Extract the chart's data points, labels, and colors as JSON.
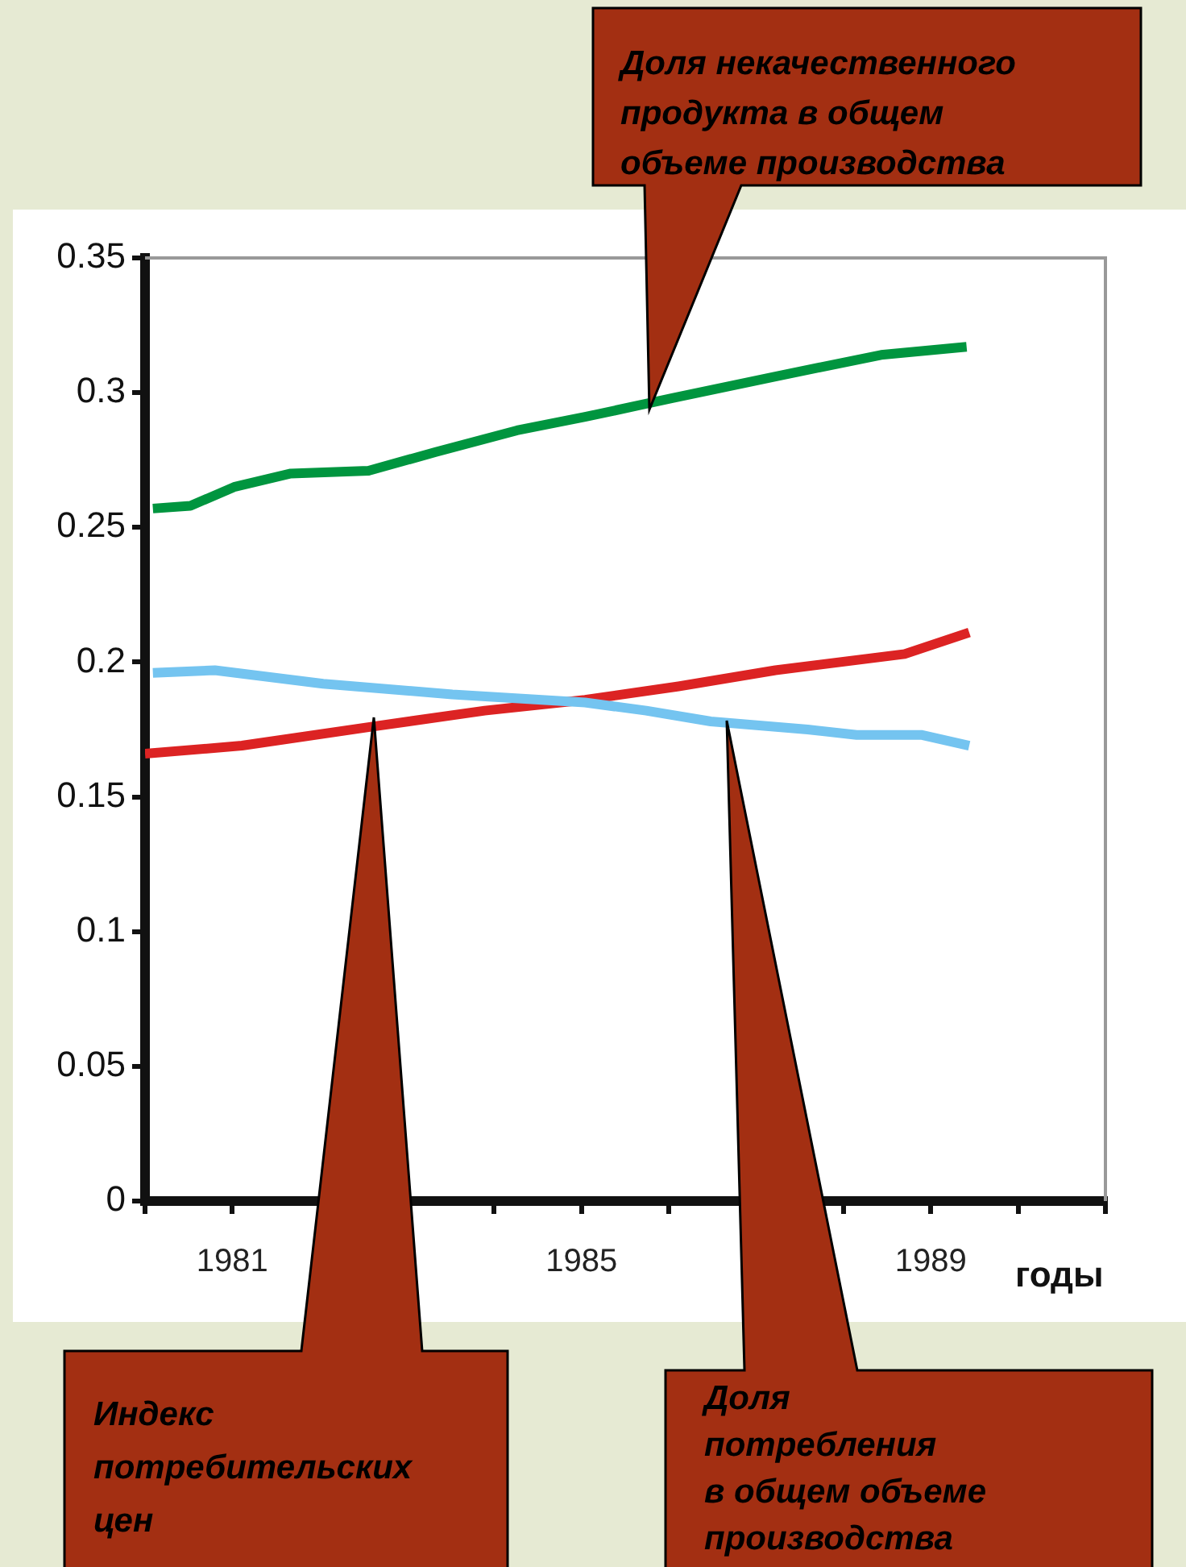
{
  "chart_data": {
    "type": "line",
    "xlabel": "годы",
    "xlim": [
      1980,
      1991
    ],
    "xticks": [
      {
        "value": 1980,
        "label": null
      },
      1981,
      {
        "value": 1982,
        "label": null
      },
      {
        "value": 1983,
        "label": null
      },
      {
        "value": 1984,
        "label": null
      },
      1985,
      {
        "value": 1986,
        "label": null
      },
      {
        "value": 1987,
        "label": null
      },
      {
        "value": 1988,
        "label": null
      },
      1989,
      {
        "value": 1990,
        "label": null
      },
      {
        "value": 1991,
        "label": null
      }
    ],
    "ylim": [
      0,
      0.35
    ],
    "yticks": [
      0,
      0.05,
      0.1,
      0.15,
      0.2,
      0.25,
      0.3,
      0.35
    ],
    "grid": false,
    "legend": false,
    "marker": "none",
    "line_style": "solid",
    "series": [
      {
        "color": "#00953f",
        "x": [
          1980.09,
          1980.52,
          1981.02,
          1981.67,
          1982.56,
          1983.33,
          1984.26,
          1985.04,
          1986.04,
          1987.22,
          1988.43,
          1989.41
        ],
        "values": [
          0.257,
          0.258,
          0.265,
          0.27,
          0.271,
          0.278,
          0.286,
          0.291,
          0.298,
          0.306,
          0.314,
          0.317
        ]
      },
      {
        "color": "#74c4f0",
        "x": [
          1980.09,
          1980.8,
          1982.04,
          1983.52,
          1985.04,
          1985.74,
          1986.48,
          1987.59,
          1988.15,
          1988.89,
          1989.44
        ],
        "values": [
          0.196,
          0.197,
          0.192,
          0.188,
          0.185,
          0.182,
          0.178,
          0.175,
          0.173,
          0.173,
          0.169
        ]
      },
      {
        "color": "#dc2323",
        "x": [
          1980,
          1981.11,
          1982.59,
          1983.89,
          1985.04,
          1986.11,
          1987.22,
          1988.7,
          1989.44
        ],
        "values": [
          0.166,
          0.169,
          0.176,
          0.182,
          0.186,
          0.191,
          0.197,
          0.203,
          0.211
        ]
      }
    ],
    "annotations": [
      "Доля некачественного\nпродукта в общем\nобъеме производства",
      "Индекс\nпотребительских\nцен",
      "Доля\nпотребления\nв общем объеме\nпроизводства"
    ]
  }
}
